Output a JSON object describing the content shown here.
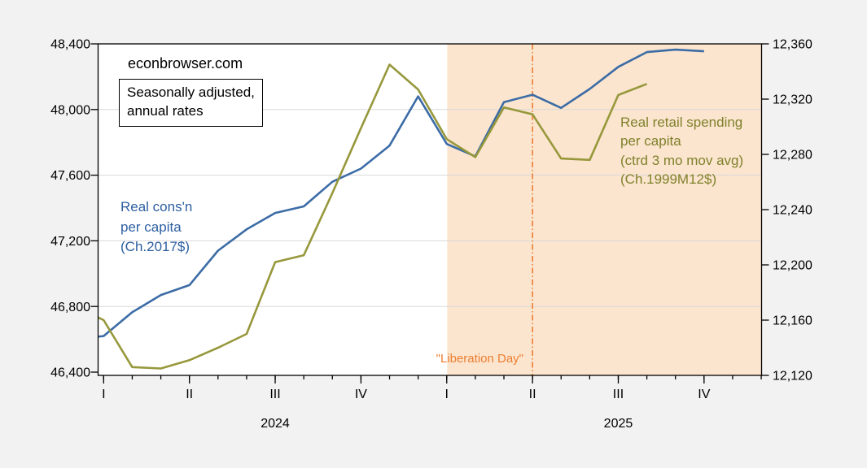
{
  "page": {
    "background": "#F2F2F2",
    "plot_background": "#FFFFFF",
    "gridline_color": "#D9D9D9",
    "frame_color": "#000000"
  },
  "watermark": "econbrowser.com",
  "note_box": {
    "lines": [
      "Seasonally adjusted,",
      "annual rates"
    ]
  },
  "annotations": {
    "consumption_label": {
      "lines": [
        "Real cons'n",
        "per capita",
        "(Ch.2017$)"
      ],
      "color": "#2D5FA0"
    },
    "retail_label": {
      "lines": [
        "Real retail spending",
        "per capita",
        "(ctrd 3 mo mov avg)",
        "(Ch.1999M12$)"
      ],
      "color": "#7F812C"
    },
    "liberation_day": {
      "text": "\"Liberation Day\"",
      "color": "#ED7D31"
    }
  },
  "chart_data": {
    "type": "line",
    "title": "",
    "x": [
      "2023-12",
      "2024-01",
      "2024-02",
      "2024-03",
      "2024-04",
      "2024-05",
      "2024-06",
      "2024-07",
      "2024-08",
      "2024-09",
      "2024-10",
      "2024-11",
      "2024-12",
      "2025-01",
      "2025-02",
      "2025-03",
      "2025-04",
      "2025-05",
      "2025-06",
      "2025-07",
      "2025-08",
      "2025-09",
      "2025-10"
    ],
    "series": [
      {
        "name": "Real cons'n per capita (Ch.2017$)",
        "axis": "left",
        "color": "#3C6CA6",
        "values": [
          46600,
          46620,
          46765,
          46870,
          46930,
          47140,
          47270,
          47370,
          47410,
          47560,
          47640,
          47780,
          48080,
          47790,
          47715,
          48045,
          48090,
          48010,
          48125,
          48260,
          48350,
          48365,
          48355
        ]
      },
      {
        "name": "Real retail spending per capita (ctrd 3 mo mov avg) (Ch.1999M12$)",
        "axis": "right",
        "color": "#97983C",
        "values": [
          12170,
          12160,
          12126,
          12125,
          12131,
          12140,
          12150,
          12202,
          12207,
          12252,
          12299,
          12345,
          12327,
          12291,
          12278,
          12314,
          12309,
          12277,
          12276,
          12323,
          12331,
          null,
          null
        ]
      }
    ],
    "left_axis": {
      "range": [
        46400,
        48400
      ],
      "ticks": [
        {
          "v": 48400,
          "label": "48,400"
        },
        {
          "v": 48000,
          "label": "48,000"
        },
        {
          "v": 47600,
          "label": "47,600"
        },
        {
          "v": 47200,
          "label": "47,200"
        },
        {
          "v": 46800,
          "label": "46,800"
        },
        {
          "v": 46400,
          "label": "46,400"
        }
      ],
      "gridlines": [
        48000,
        47600,
        47200,
        46800
      ]
    },
    "right_axis": {
      "range": [
        12120,
        12360
      ],
      "ticks": [
        {
          "v": 12360,
          "label": "12,360"
        },
        {
          "v": 12320,
          "label": "12,320"
        },
        {
          "v": 12280,
          "label": "12,280"
        },
        {
          "v": 12240,
          "label": "12,240"
        },
        {
          "v": 12200,
          "label": "12,200"
        },
        {
          "v": 12160,
          "label": "12,160"
        },
        {
          "v": 12120,
          "label": "12,120"
        }
      ]
    },
    "x_axis": {
      "quarter_ticks": [
        {
          "index": 1,
          "label": "I"
        },
        {
          "index": 4,
          "label": "II"
        },
        {
          "index": 7,
          "label": "III"
        },
        {
          "index": 10,
          "label": "IV"
        },
        {
          "index": 13,
          "label": "I"
        },
        {
          "index": 16,
          "label": "II"
        },
        {
          "index": 19,
          "label": "III"
        },
        {
          "index": 22,
          "label": "IV"
        }
      ],
      "year_labels": [
        {
          "index": 7,
          "label": "2024"
        },
        {
          "index": 19,
          "label": "2025"
        }
      ],
      "minor_tick_first_index": 1,
      "minor_tick_last_index": 24
    },
    "shaded_region": {
      "start_index": 13,
      "color": "#FBE5CE"
    },
    "vline": {
      "index": 16,
      "color": "#ED7D31",
      "style": "dash-dot"
    },
    "legend_position": "none",
    "grid": "horizontal-only"
  }
}
